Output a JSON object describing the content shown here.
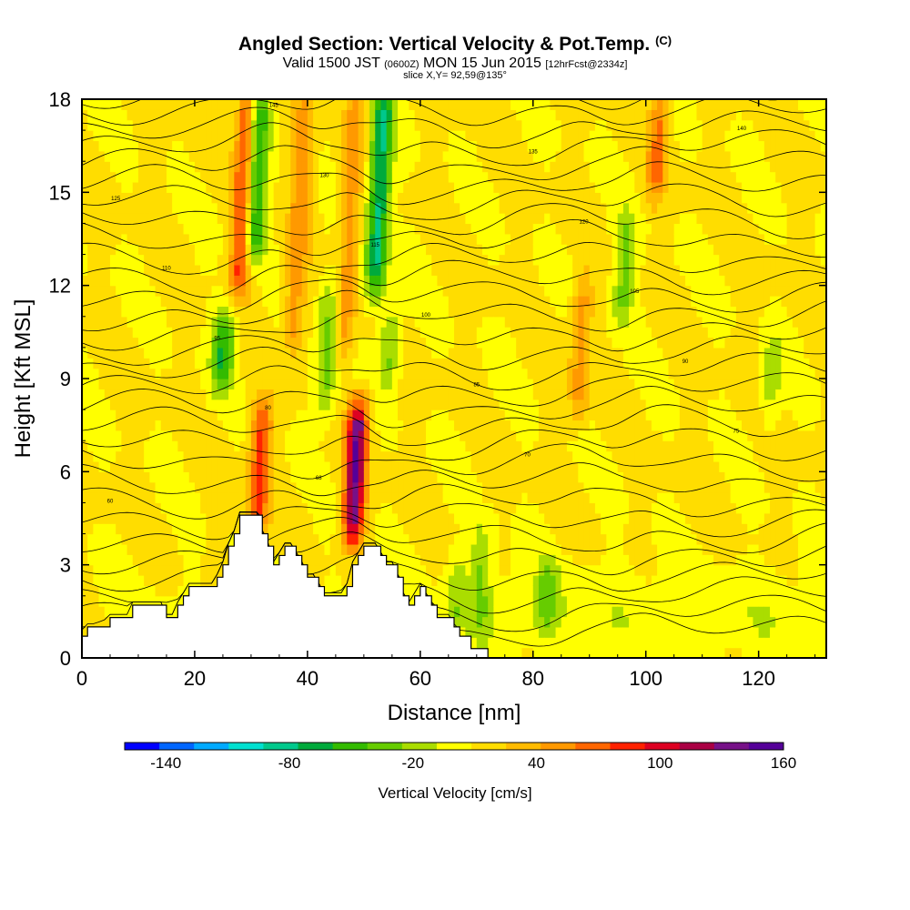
{
  "header": {
    "title": "Angled Section: Vertical Velocity & Pot.Temp.",
    "title_unit": "(C)",
    "valid_prefix": "Valid 1500 JST",
    "valid_utc": "(0600Z)",
    "valid_date": "MON 15 Jun 2015",
    "forecast": "[12hrFcst@2334z]",
    "slice": "slice X,Y= 92,59@135°"
  },
  "chart_data": {
    "type": "heatmap",
    "title": "Angled Section: Vertical Velocity & Pot.Temp. (C)",
    "xlabel": "Distance [nm]",
    "ylabel": "Height [Kft MSL]",
    "xlim": [
      0,
      132
    ],
    "ylim": [
      0,
      18
    ],
    "xticks": [
      0,
      20,
      40,
      60,
      80,
      100,
      120
    ],
    "yticks": [
      0,
      3,
      6,
      9,
      12,
      15,
      18
    ],
    "colorbar": {
      "label": "Vertical Velocity [cm/s]",
      "ticks": [
        -140,
        -80,
        -20,
        40,
        100,
        160
      ],
      "range": [
        -160,
        160
      ],
      "colors": [
        "#0000ff",
        "#0066ff",
        "#00aaff",
        "#00e0d0",
        "#00c88c",
        "#00aa3c",
        "#33bb00",
        "#66cc00",
        "#aadd00",
        "#ffff00",
        "#ffdd00",
        "#ffbb00",
        "#ff9900",
        "#ff6600",
        "#ff2200",
        "#dd0022",
        "#aa0044",
        "#771188",
        "#550099"
      ]
    },
    "velocity_columns": [
      {
        "x": 27,
        "value": 80,
        "z0": 12,
        "z1": 18
      },
      {
        "x": 29,
        "value": -80,
        "z0": 13,
        "z1": 18
      },
      {
        "x": 24.5,
        "value": -70,
        "z0": 9,
        "z1": 11
      },
      {
        "x": 32,
        "value": 70,
        "z0": 4,
        "z1": 8
      },
      {
        "x": 37,
        "value": 40,
        "z0": 10,
        "z1": 18
      },
      {
        "x": 43,
        "value": -40,
        "z0": 8,
        "z1": 12
      },
      {
        "x": 46,
        "value": 40,
        "z0": 10,
        "z1": 18
      },
      {
        "x": 49,
        "value": 130,
        "z0": 4,
        "z1": 8
      },
      {
        "x": 51,
        "value": -90,
        "z0": 12,
        "z1": 18
      },
      {
        "x": 54,
        "value": -40,
        "z0": 9,
        "z1": 11
      },
      {
        "x": 68,
        "value": -30,
        "z0": 1,
        "z1": 3
      },
      {
        "x": 72,
        "value": -30,
        "z0": 1,
        "z1": 4
      },
      {
        "x": 84,
        "value": -30,
        "z0": 1,
        "z1": 3
      },
      {
        "x": 88,
        "value": 40,
        "z0": 8,
        "z1": 12
      },
      {
        "x": 95,
        "value": -40,
        "z0": 11,
        "z1": 14
      },
      {
        "x": 100,
        "value": 50,
        "z0": 15,
        "z1": 18
      },
      {
        "x": 122,
        "value": -30,
        "z0": 8,
        "z1": 10
      }
    ],
    "terrain_kft": [
      [
        0,
        0.7
      ],
      [
        1,
        1.0
      ],
      [
        5,
        1.3
      ],
      [
        9,
        1.7
      ],
      [
        13,
        1.7
      ],
      [
        15,
        1.3
      ],
      [
        17,
        1.7
      ],
      [
        18,
        2.0
      ],
      [
        19,
        2.3
      ],
      [
        23,
        2.3
      ],
      [
        24,
        2.6
      ],
      [
        25,
        3.0
      ],
      [
        26,
        3.6
      ],
      [
        27,
        4.0
      ],
      [
        28,
        4.6
      ],
      [
        31,
        4.6
      ],
      [
        32,
        4.0
      ],
      [
        33,
        3.6
      ],
      [
        34,
        3.0
      ],
      [
        35,
        3.3
      ],
      [
        36,
        3.6
      ],
      [
        37,
        3.6
      ],
      [
        38,
        3.3
      ],
      [
        39,
        3.0
      ],
      [
        40,
        2.6
      ],
      [
        42,
        2.3
      ],
      [
        43,
        2.0
      ],
      [
        46,
        2.0
      ],
      [
        47,
        2.3
      ],
      [
        48,
        3.0
      ],
      [
        49,
        3.3
      ],
      [
        50,
        3.6
      ],
      [
        52,
        3.6
      ],
      [
        53,
        3.3
      ],
      [
        54,
        3.0
      ],
      [
        56,
        2.6
      ],
      [
        57,
        2.0
      ],
      [
        58,
        1.7
      ],
      [
        59,
        2.0
      ],
      [
        60,
        2.3
      ],
      [
        61,
        2.0
      ],
      [
        62,
        1.7
      ],
      [
        63,
        1.3
      ],
      [
        66,
        1.0
      ],
      [
        67,
        0.7
      ],
      [
        69,
        0.3
      ],
      [
        71,
        0.3
      ],
      [
        72,
        0
      ],
      [
        132,
        0
      ]
    ],
    "isentrope_labels": [
      "60",
      "68",
      "70",
      "75",
      "80",
      "85",
      "90",
      "95",
      "100",
      "105",
      "110",
      "115",
      "120",
      "125",
      "130",
      "135",
      "140",
      "145"
    ]
  }
}
